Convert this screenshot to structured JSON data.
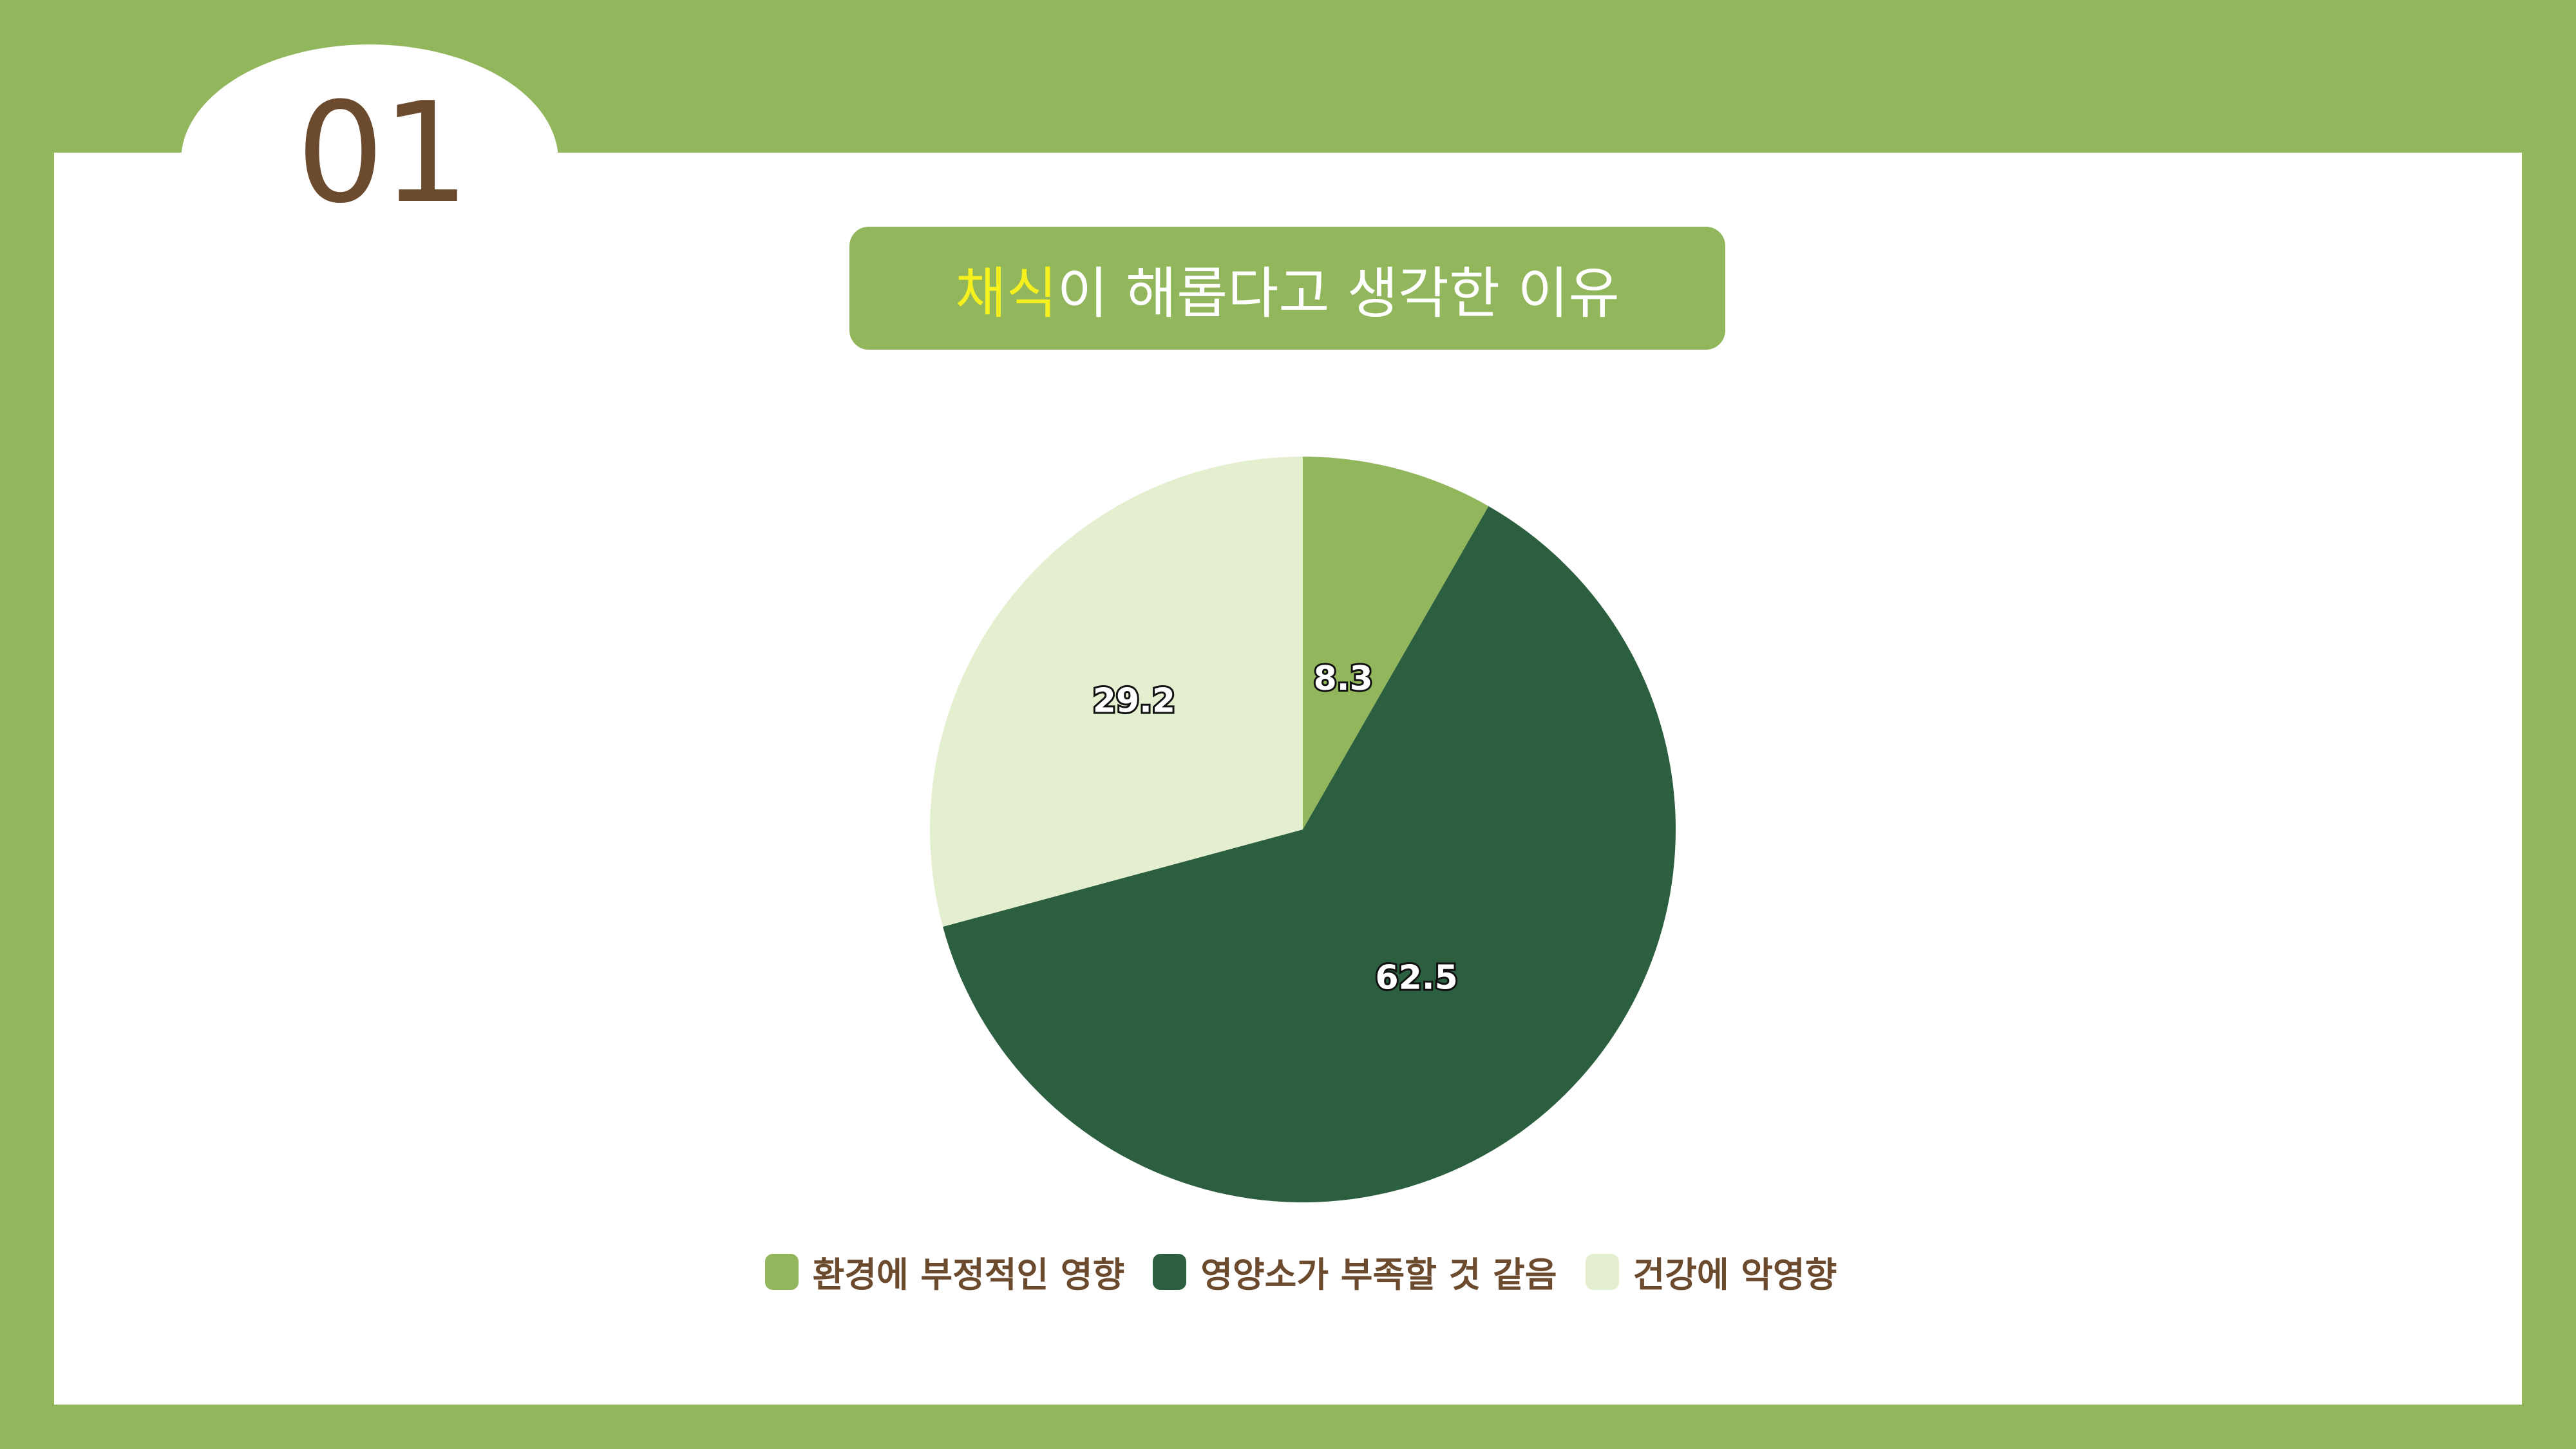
{
  "section_number": "01",
  "title": {
    "highlight": "채식",
    "rest": "이 해롭다고 생각한 이유",
    "highlight_color": "#f5f01e"
  },
  "colors": {
    "frame": "#92b65c",
    "text_brown": "#6b4a2e"
  },
  "chart_data": {
    "type": "pie",
    "title": "채식이 해롭다고 생각한 이유",
    "start": "top, clockwise",
    "legend_position": "bottom",
    "slices": [
      {
        "name": "환경에 부정적인 영향",
        "value": 8.3,
        "label": "8.3",
        "color": "#92b65c"
      },
      {
        "name": "영양소가 부족할 것 같음",
        "value": 62.5,
        "label": "62.5",
        "color": "#2c5f3f"
      },
      {
        "name": "건강에 악영향",
        "value": 29.2,
        "label": "29.2",
        "color": "#e4efcf"
      }
    ]
  }
}
